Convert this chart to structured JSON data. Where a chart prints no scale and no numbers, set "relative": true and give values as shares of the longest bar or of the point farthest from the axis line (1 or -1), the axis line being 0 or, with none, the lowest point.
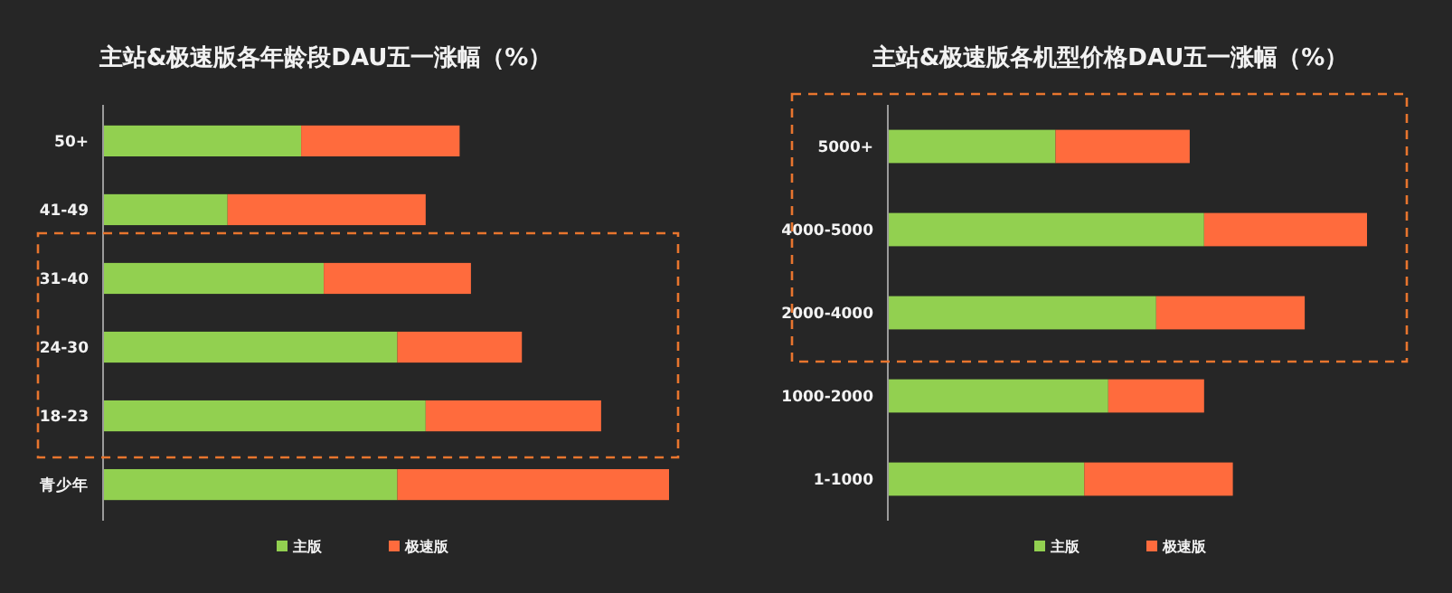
{
  "chart_data": [
    {
      "type": "bar",
      "orientation": "horizontal",
      "stacked": true,
      "relative": true,
      "title": "主站&极速版各年龄段DAU五一涨幅（%）",
      "categories": [
        "50+",
        "41-49",
        "31-40",
        "24-30",
        "18-23",
        "青少年"
      ],
      "series": [
        {
          "name": "主版",
          "color": "#92d050",
          "values": [
            0.35,
            0.22,
            0.39,
            0.52,
            0.57,
            0.52
          ]
        },
        {
          "name": "极速版",
          "color": "#ff6b3d",
          "values": [
            0.28,
            0.35,
            0.26,
            0.22,
            0.31,
            0.48
          ]
        }
      ],
      "legend": "bottom"
    },
    {
      "type": "bar",
      "orientation": "horizontal",
      "stacked": true,
      "relative": true,
      "title": "主站&极速版各机型价格DAU五一涨幅（%）",
      "categories": [
        "5000+",
        "4000-5000",
        "2000-4000",
        "1000-2000",
        "1-1000"
      ],
      "series": [
        {
          "name": "主版",
          "color": "#92d050",
          "values": [
            0.35,
            0.66,
            0.56,
            0.46,
            0.41
          ]
        },
        {
          "name": "极速版",
          "color": "#ff6b3d",
          "values": [
            0.28,
            0.34,
            0.31,
            0.2,
            0.31
          ]
        }
      ],
      "legend": "bottom"
    }
  ]
}
